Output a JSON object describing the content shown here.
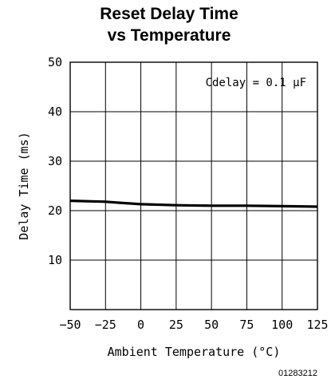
{
  "chart_data": {
    "type": "line",
    "title_lines": [
      "Reset Delay Time",
      "vs Temperature"
    ],
    "xlabel": "Ambient Temperature (°C)",
    "ylabel": "Delay Time (ms)",
    "annotation": "Cdelay = 0.1 μF",
    "figure_id": "01283212",
    "xlim": [
      -50,
      125
    ],
    "ylim": [
      0,
      50
    ],
    "x_ticks": [
      -50,
      -25,
      0,
      25,
      50,
      75,
      100,
      125
    ],
    "x_tick_labels": [
      "−50",
      "−25",
      "0",
      "25",
      "50",
      "75",
      "100",
      "125"
    ],
    "y_ticks": [
      10,
      20,
      30,
      40,
      50
    ],
    "y_tick_labels": [
      "10",
      "20",
      "30",
      "40",
      "50"
    ],
    "grid": true,
    "series": [
      {
        "x": [
          -50,
          -25,
          -15,
          0,
          25,
          50,
          75,
          100,
          125
        ],
        "y": [
          22.0,
          21.8,
          21.6,
          21.3,
          21.1,
          21.0,
          21.0,
          20.9,
          20.8
        ],
        "color": "#000000"
      }
    ]
  }
}
